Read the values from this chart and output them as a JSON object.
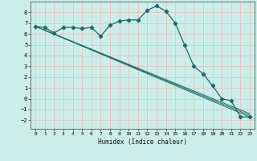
{
  "xlabel": "Humidex (Indice chaleur)",
  "ylabel": "",
  "background_color": "#cceee8",
  "grid_color": "#ffffff",
  "line_color": "#1a6b6b",
  "xlim": [
    -0.5,
    23.5
  ],
  "ylim": [
    -2.8,
    9.0
  ],
  "yticks": [
    -2,
    -1,
    0,
    1,
    2,
    3,
    4,
    5,
    6,
    7,
    8
  ],
  "xticks": [
    0,
    1,
    2,
    3,
    4,
    5,
    6,
    7,
    8,
    9,
    10,
    11,
    12,
    13,
    14,
    15,
    16,
    17,
    18,
    19,
    20,
    21,
    22,
    23
  ],
  "line1_x": [
    0,
    1,
    2,
    3,
    4,
    5,
    6,
    7,
    8,
    9,
    10,
    11,
    12,
    13,
    14,
    15,
    16,
    17,
    18,
    19,
    20,
    21,
    22,
    23
  ],
  "line1_y": [
    6.7,
    6.6,
    6.1,
    6.6,
    6.6,
    6.5,
    6.6,
    5.8,
    6.8,
    7.2,
    7.3,
    7.3,
    8.2,
    8.6,
    8.1,
    7.0,
    5.0,
    3.0,
    2.3,
    1.2,
    0.0,
    -0.2,
    -1.7,
    -1.7
  ],
  "line2_x": [
    0,
    23
  ],
  "line2_y": [
    6.7,
    -1.7
  ],
  "line3_x": [
    0,
    23
  ],
  "line3_y": [
    6.7,
    -1.55
  ],
  "line4_x": [
    0,
    23
  ],
  "line4_y": [
    6.7,
    -1.4
  ]
}
